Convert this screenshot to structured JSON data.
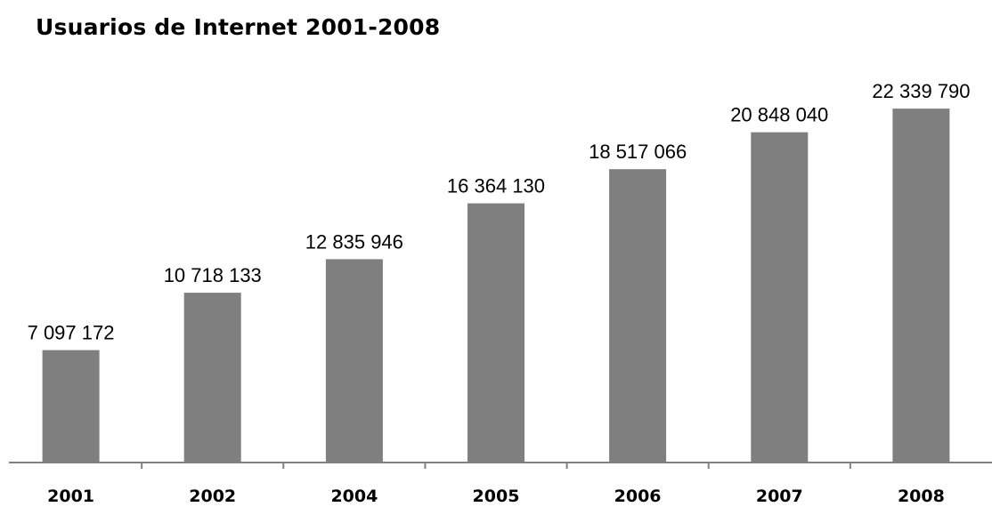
{
  "chart_data": {
    "type": "bar",
    "title": "Usuarios de Internet 2001-2008",
    "categories": [
      "2001",
      "2002",
      "2004",
      "2005",
      "2006",
      "2007",
      "2008"
    ],
    "values": [
      7097172,
      10718133,
      12835946,
      16364130,
      18517066,
      20848040,
      22339790
    ],
    "data_labels": [
      "7 097 172",
      "10 718 133",
      "12 835 946",
      "16 364 130",
      "18 517 066",
      "20 848 040",
      "22 339 790"
    ],
    "ylim": [
      0,
      25000000
    ],
    "xlabel": "",
    "ylabel": "",
    "grid": false,
    "legend": "none",
    "colors": {
      "bar": "#7f7f7f",
      "axis": "#808080"
    }
  }
}
